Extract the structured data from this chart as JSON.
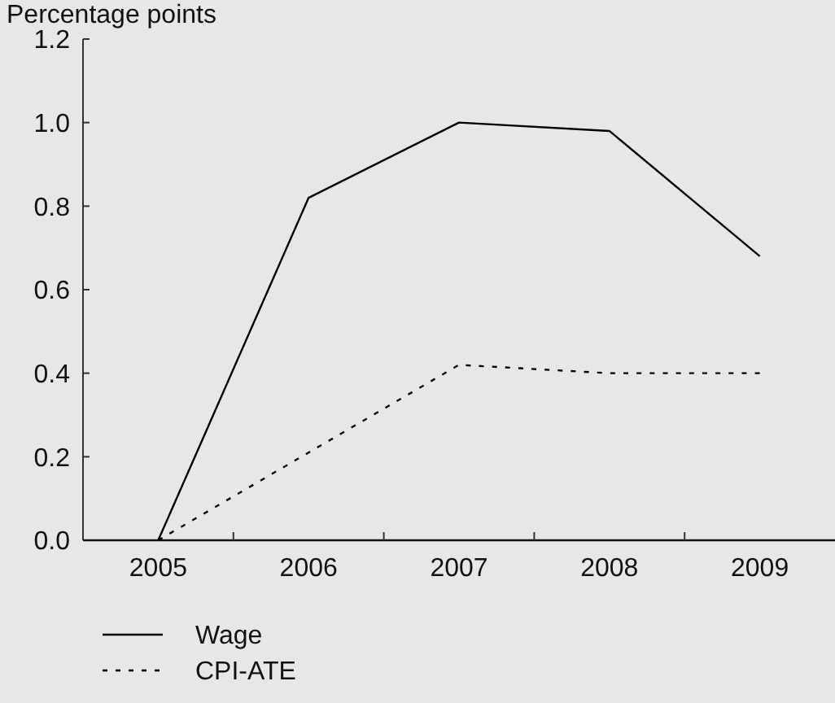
{
  "chart_data": {
    "type": "line",
    "ylabel": "Percentage points",
    "categories": [
      "2005",
      "2006",
      "2007",
      "2008",
      "2009"
    ],
    "series": [
      {
        "name": "Wage",
        "color": "#000000",
        "values": [
          0,
          0.82,
          1.0,
          0.98,
          0.68
        ],
        "line_style": "solid"
      },
      {
        "name": "CPI-ATE",
        "color": "#000000",
        "values": [
          0,
          0.21,
          0.42,
          0.4,
          0.4
        ],
        "line_style": "dashed"
      }
    ],
    "ylim": [
      0,
      1.2
    ],
    "yticks": [
      {
        "value": 0,
        "label": "0.0"
      },
      {
        "value": 0.2,
        "label": "0.2"
      },
      {
        "value": 0.4,
        "label": "0.4"
      },
      {
        "value": 0.6,
        "label": "0.6"
      },
      {
        "value": 0.8,
        "label": "0.8"
      },
      {
        "value": 1,
        "label": "1.0"
      },
      {
        "value": 1.2,
        "label": "1.2"
      }
    ],
    "grid": false,
    "legend": "bottom left",
    "marker": "none"
  }
}
